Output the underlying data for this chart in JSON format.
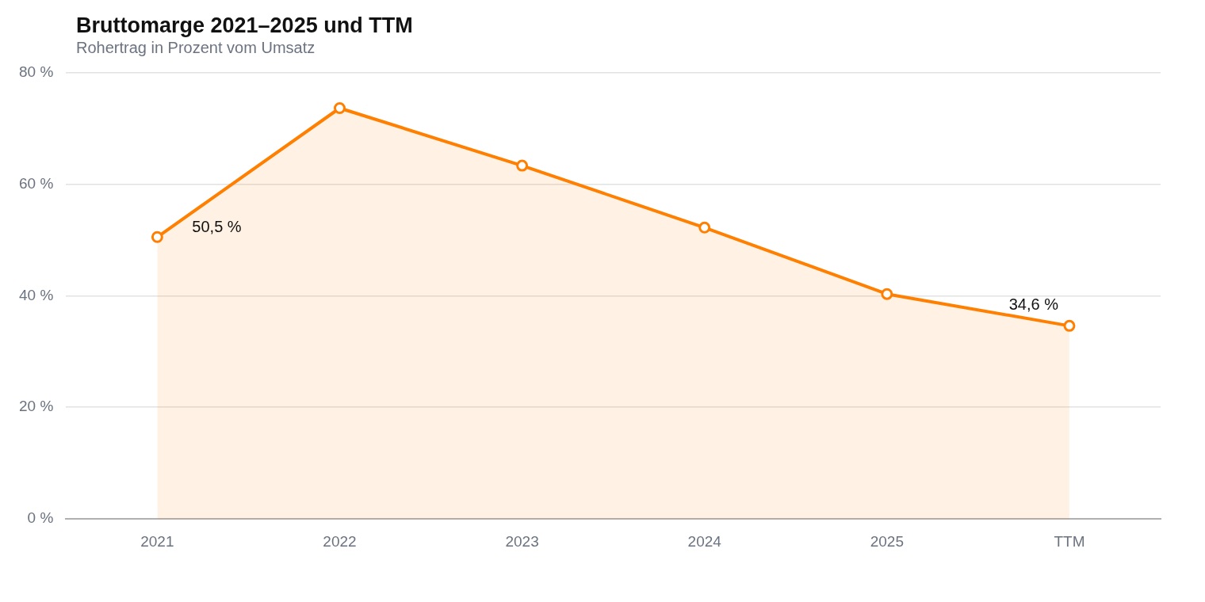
{
  "chart_data": {
    "type": "area",
    "title": "Bruttomarge 2021–2025 und TTM",
    "subtitle": "Rohertrag in Prozent vom Umsatz",
    "categories": [
      "2021",
      "2022",
      "2023",
      "2024",
      "2025",
      "TTM"
    ],
    "series": [
      {
        "color": "#ff7f00",
        "values": [
          50.5,
          73.6,
          63.3,
          52.2,
          40.3,
          34.6
        ],
        "value_labels": [
          "50,5 %",
          null,
          null,
          null,
          null,
          "34,6 %"
        ]
      }
    ],
    "ylim": [
      0,
      80
    ],
    "yticks": [
      {
        "value": 0,
        "label": "0 %"
      },
      {
        "value": 20,
        "label": "20 %"
      },
      {
        "value": 40,
        "label": "40 %"
      },
      {
        "value": 60,
        "label": "60 %"
      },
      {
        "value": 80,
        "label": "80 %"
      }
    ],
    "grid": "y",
    "legend": false,
    "marker": "circle",
    "line_style": "solid"
  }
}
